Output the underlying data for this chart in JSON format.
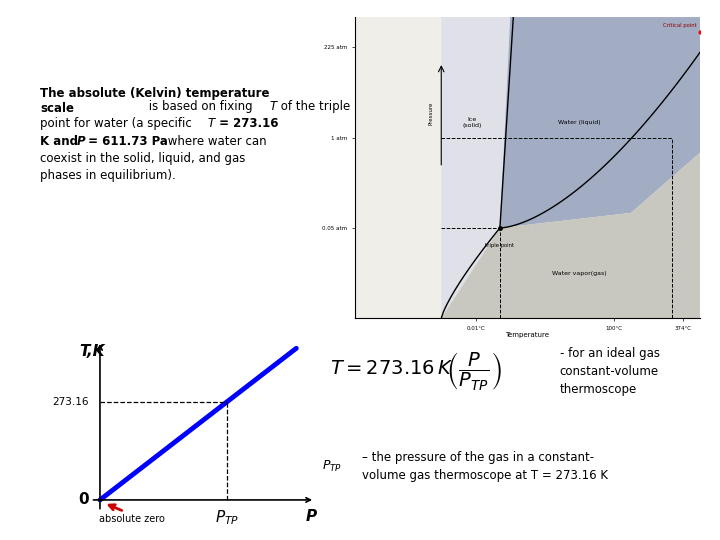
{
  "title": "The Absolute (Kelvin) Temperature Scale",
  "title_bg_color": "#1515CC",
  "title_text_color": "#FFFFFF",
  "title_fontsize": 18,
  "bg_color": "#FFFFFF",
  "line_color": "#0000FF",
  "arrow_color": "#CC0000",
  "graph_label_T": "T,K",
  "graph_label_P": "P",
  "graph_label_273": "273.16",
  "graph_label_0": "0",
  "graph_label_PTP": "P_TP",
  "graph_label_abszero": "absolute zero",
  "formula_note": "- for an ideal gas\nconstant-volume\nthermoscope",
  "ptp_note1": "P_TP",
  "ptp_note2": " – the pressure of the gas in a constant-\nvolume gas thermoscope at T = 273.16 K"
}
